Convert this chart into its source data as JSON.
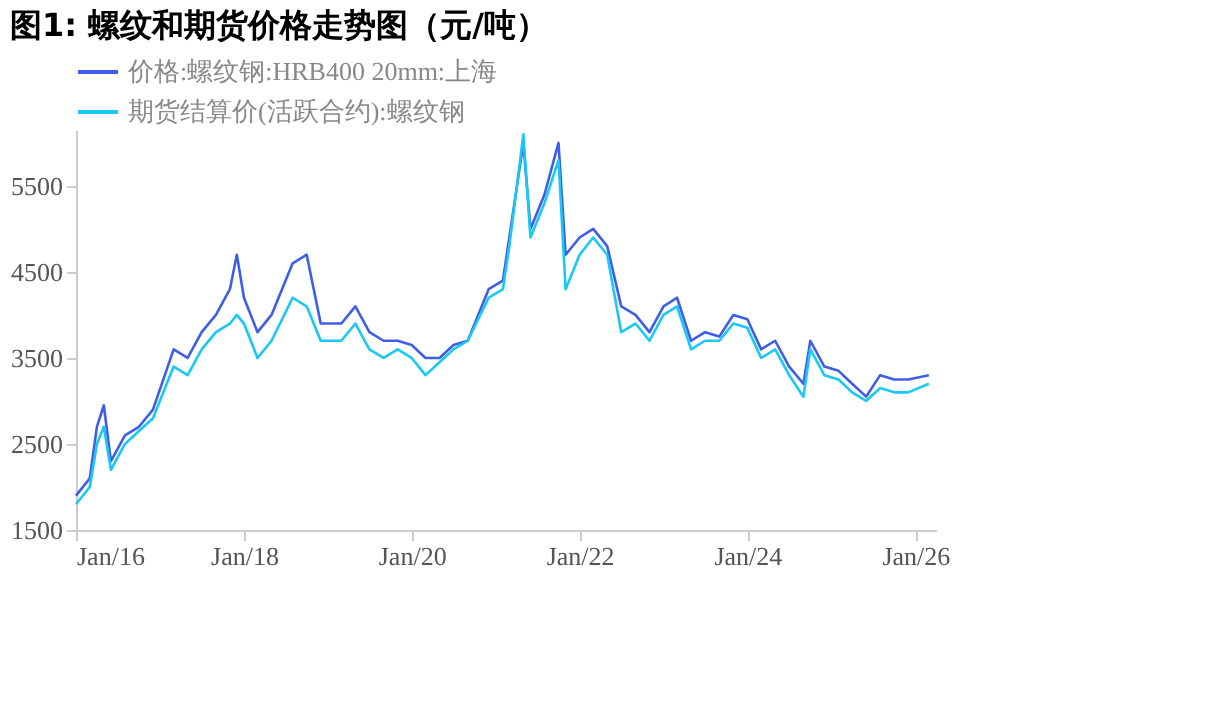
{
  "chart_data": {
    "type": "line",
    "title": "图1:  螺纹和期货价格走势图（元/吨）",
    "x": [
      "2016-01",
      "2016-03",
      "2016-04",
      "2016-05",
      "2016-06",
      "2016-08",
      "2016-10",
      "2016-12",
      "2017-03",
      "2017-05",
      "2017-07",
      "2017-09",
      "2017-11",
      "2017-12",
      "2018-01",
      "2018-03",
      "2018-05",
      "2018-08",
      "2018-10",
      "2018-12",
      "2019-03",
      "2019-05",
      "2019-07",
      "2019-09",
      "2019-11",
      "2020-01",
      "2020-03",
      "2020-05",
      "2020-07",
      "2020-09",
      "2020-12",
      "2021-02",
      "2021-03",
      "2021-05",
      "2021-06",
      "2021-08",
      "2021-10",
      "2021-11",
      "2022-01",
      "2022-03",
      "2022-05",
      "2022-07",
      "2022-09",
      "2022-11",
      "2023-01",
      "2023-03",
      "2023-05",
      "2023-07",
      "2023-09",
      "2023-11",
      "2024-01",
      "2024-03",
      "2024-05",
      "2024-07",
      "2024-09",
      "2024-10",
      "2024-12",
      "2025-02",
      "2025-04",
      "2025-06",
      "2025-08",
      "2025-10",
      "2025-12",
      "2026-03"
    ],
    "series": [
      {
        "name": "价格:螺纹钢:HRB400 20mm:上海",
        "color": "#3f5ee8",
        "values": [
          1900,
          2100,
          2700,
          2950,
          2300,
          2600,
          2700,
          2900,
          3600,
          3500,
          3800,
          4000,
          4300,
          4700,
          4200,
          3800,
          4000,
          4600,
          4700,
          3900,
          3900,
          4100,
          3800,
          3700,
          3700,
          3650,
          3500,
          3500,
          3650,
          3700,
          4300,
          4400,
          4900,
          6000,
          5000,
          5400,
          6000,
          4700,
          4900,
          5000,
          4800,
          4100,
          4000,
          3800,
          4100,
          4200,
          3700,
          3800,
          3750,
          4000,
          3950,
          3600,
          3700,
          3400,
          3200,
          3700,
          3400,
          3350,
          3200,
          3050,
          3300,
          3250,
          3250,
          3300
        ]
      },
      {
        "name": "期货结算价(活跃合约):螺纹钢",
        "color": "#19c8f5",
        "values": [
          1800,
          2000,
          2500,
          2700,
          2200,
          2500,
          2650,
          2800,
          3400,
          3300,
          3600,
          3800,
          3900,
          4000,
          3900,
          3500,
          3700,
          4200,
          4100,
          3700,
          3700,
          3900,
          3600,
          3500,
          3600,
          3500,
          3300,
          3450,
          3600,
          3700,
          4200,
          4300,
          4800,
          6100,
          4900,
          5300,
          5800,
          4300,
          4700,
          4900,
          4700,
          3800,
          3900,
          3700,
          4000,
          4100,
          3600,
          3700,
          3700,
          3900,
          3850,
          3500,
          3600,
          3300,
          3050,
          3600,
          3300,
          3250,
          3100,
          3000,
          3150,
          3100,
          3100,
          3200
        ]
      }
    ],
    "xlim": [
      "2016-01",
      "2026-04"
    ],
    "xticks": [
      {
        "value": "2016-01",
        "label": "Jan/16"
      },
      {
        "value": "2018-01",
        "label": "Jan/18"
      },
      {
        "value": "2020-01",
        "label": "Jan/20"
      },
      {
        "value": "2022-01",
        "label": "Jan/22"
      },
      {
        "value": "2024-01",
        "label": "Jan/24"
      },
      {
        "value": "2026-01",
        "label": "Jan/26"
      }
    ],
    "ylim": [
      1500,
      6150
    ],
    "yticks": [
      1500,
      2500,
      3500,
      4500,
      5500
    ],
    "grid": false,
    "legend": "top",
    "line_style": "solid",
    "marker": "none"
  }
}
